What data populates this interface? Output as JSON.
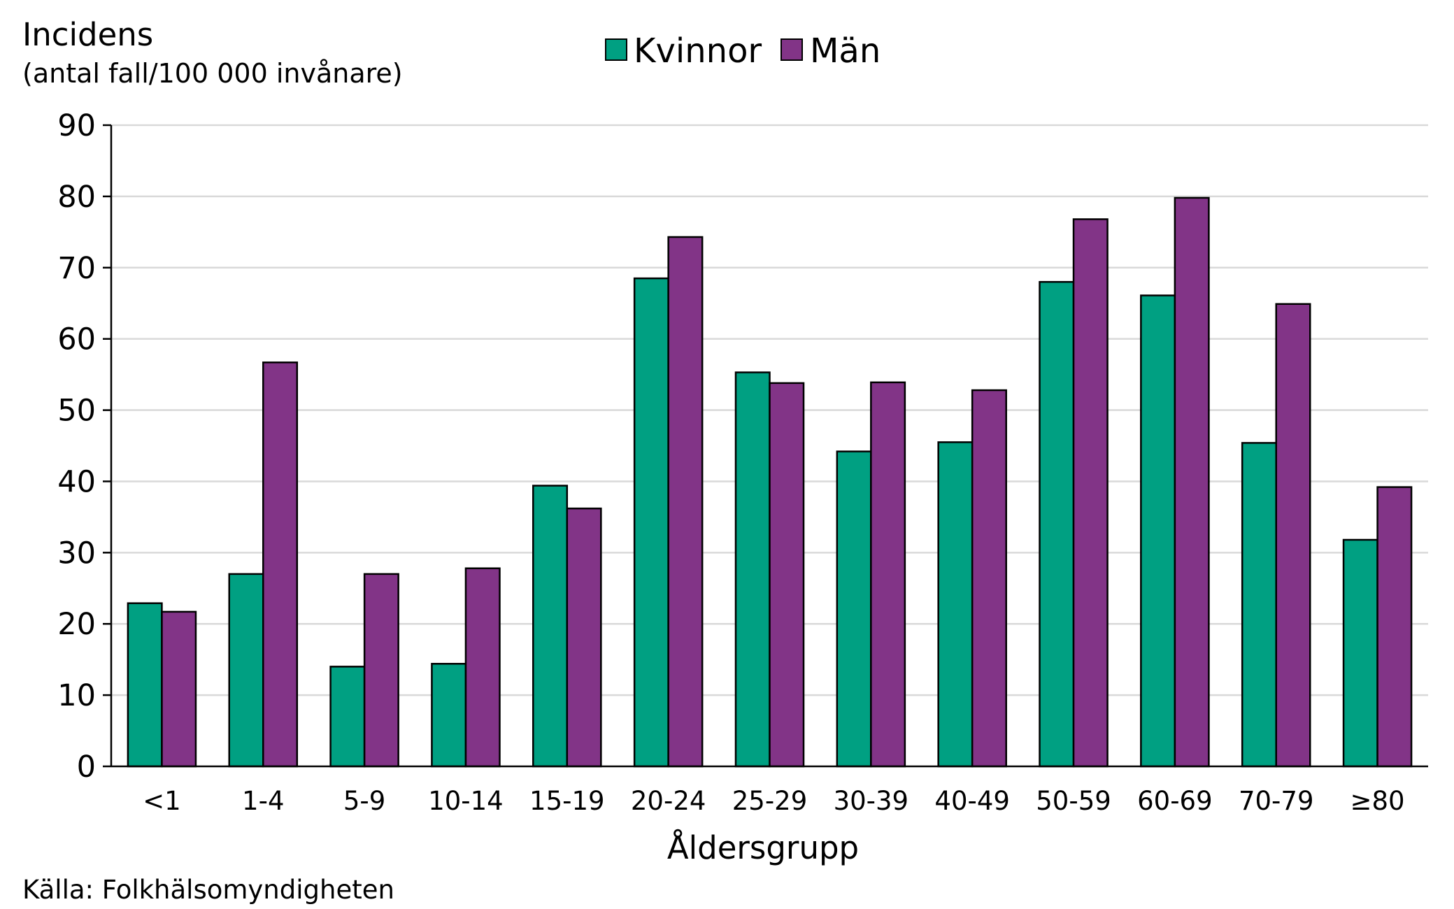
{
  "chart_data": {
    "type": "bar",
    "ylabel": "Incidens",
    "ylabel_sub": "(antal fall/100 000 invånare)",
    "xlabel": "Åldersgrupp",
    "source": "Källa: Folkhälsomyndigheten",
    "categories": [
      "<1",
      "1-4",
      "5-9",
      "10-14",
      "15-19",
      "20-24",
      "25-29",
      "30-39",
      "40-49",
      "50-59",
      "60-69",
      "70-79",
      "≥80"
    ],
    "series": [
      {
        "name": "Kvinnor",
        "color": "#00a082",
        "values": [
          22.9,
          27.0,
          14.0,
          14.4,
          39.4,
          68.5,
          55.3,
          44.2,
          45.5,
          68.0,
          66.1,
          45.4,
          31.8
        ]
      },
      {
        "name": "Män",
        "color": "#823487",
        "values": [
          21.7,
          56.7,
          27.0,
          27.8,
          36.2,
          74.3,
          53.8,
          53.9,
          52.8,
          76.8,
          79.8,
          64.9,
          39.2
        ]
      }
    ],
    "ylim": [
      0,
      90
    ],
    "yticks": [
      "0",
      "10",
      "20",
      "30",
      "40",
      "50",
      "60",
      "70",
      "80",
      "90"
    ],
    "grid": true,
    "legend_position": "top-center"
  }
}
